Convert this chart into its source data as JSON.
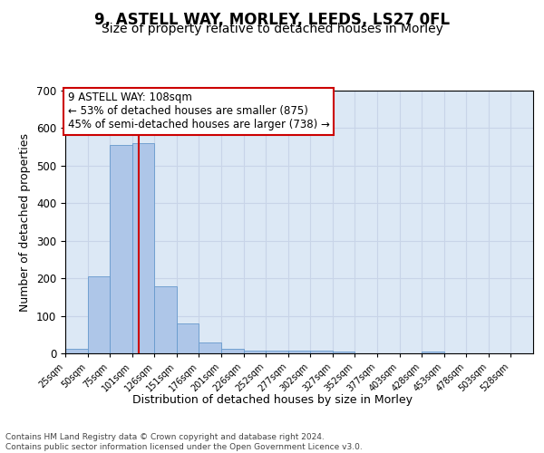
{
  "title1": "9, ASTELL WAY, MORLEY, LEEDS, LS27 0FL",
  "title2": "Size of property relative to detached houses in Morley",
  "xlabel": "Distribution of detached houses by size in Morley",
  "ylabel": "Number of detached properties",
  "bin_labels": [
    "25sqm",
    "50sqm",
    "75sqm",
    "101sqm",
    "126sqm",
    "151sqm",
    "176sqm",
    "201sqm",
    "226sqm",
    "252sqm",
    "277sqm",
    "302sqm",
    "327sqm",
    "352sqm",
    "377sqm",
    "403sqm",
    "428sqm",
    "453sqm",
    "478sqm",
    "503sqm",
    "528sqm"
  ],
  "bar_heights": [
    12,
    204,
    554,
    560,
    178,
    80,
    29,
    12,
    7,
    7,
    7,
    7,
    6,
    0,
    0,
    0,
    6,
    0,
    0,
    0,
    0
  ],
  "bar_color": "#aec6e8",
  "bar_edge_color": "#6699cc",
  "vline_color": "#cc0000",
  "annotation_text": "9 ASTELL WAY: 108sqm\n← 53% of detached houses are smaller (875)\n45% of semi-detached houses are larger (738) →",
  "annotation_box_color": "#ffffff",
  "annotation_box_edge": "#cc0000",
  "annotation_fontsize": 8.5,
  "grid_color": "#c8d4e8",
  "background_color": "#dce8f5",
  "ylim": [
    0,
    700
  ],
  "footer_text": "Contains HM Land Registry data © Crown copyright and database right 2024.\nContains public sector information licensed under the Open Government Licence v3.0.",
  "title1_fontsize": 12,
  "title2_fontsize": 10,
  "xlabel_fontsize": 9,
  "ylabel_fontsize": 9,
  "footer_fontsize": 6.5
}
